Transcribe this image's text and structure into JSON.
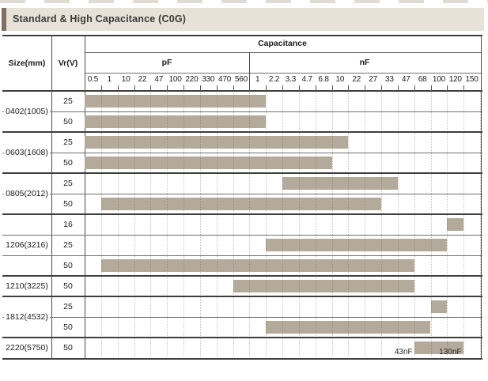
{
  "title": "Standard & High Capacitance (C0G)",
  "colors": {
    "accent": "#7e6f60",
    "title_bg": "#e6e2d8",
    "bar": "#b3aa9b"
  },
  "header": {
    "size": "Size(mm)",
    "voltage": "Vr(V)",
    "capacitance": "Capacitance",
    "pf_unit": "pF",
    "nf_unit": "nF"
  },
  "chart_data": {
    "type": "range-bar",
    "title": "Standard & High Capacitance (C0G)",
    "x_axis": {
      "pf_ticks": [
        "0.5",
        "1",
        "10",
        "22",
        "47",
        "100",
        "220",
        "330",
        "470",
        "560"
      ],
      "nf_ticks": [
        "1",
        "2.2",
        "3.3",
        "4.7",
        "6.8",
        "10",
        "22",
        "27",
        "33",
        "47",
        "68",
        "100",
        "120",
        "150"
      ]
    },
    "layout": {
      "bins_total": 24,
      "grid": "dotted-vertical",
      "bar_note": "from/to are bin boundary indices 0-24 along the 24-bin capacitance scale"
    },
    "groups": [
      {
        "size": "0402(1005)",
        "rows": [
          {
            "vr": "25",
            "from": 0,
            "to": 11,
            "range": "0.5 pF - 1 nF"
          },
          {
            "vr": "50",
            "from": 0,
            "to": 11,
            "range": "0.5 pF - 1 nF"
          }
        ]
      },
      {
        "size": "0603(1608)",
        "rows": [
          {
            "vr": "25",
            "from": 0,
            "to": 16,
            "range": "0.5 pF - 10 nF"
          },
          {
            "vr": "50",
            "from": 0,
            "to": 15,
            "range": "0.5 pF - 6.8 nF"
          }
        ]
      },
      {
        "size": "0805(2012)",
        "rows": [
          {
            "vr": "25",
            "from": 12,
            "to": 19,
            "range": "3.3 nF - 33 nF"
          },
          {
            "vr": "50",
            "from": 1,
            "to": 18,
            "range": "1 pF - 27 nF"
          }
        ]
      },
      {
        "size": "1206(3216)",
        "rows": [
          {
            "vr": "16",
            "from": 22,
            "to": 23,
            "range": "120 nF"
          },
          {
            "vr": "25",
            "from": 11,
            "to": 22,
            "range": "2.2 nF - 100 nF"
          },
          {
            "vr": "50",
            "from": 1,
            "to": 20,
            "range": "1 pF - 47 nF"
          }
        ]
      },
      {
        "size": "1210(3225)",
        "rows": [
          {
            "vr": "50",
            "from": 9,
            "to": 20,
            "range": "560 pF - 47 nF"
          }
        ]
      },
      {
        "size": "1812(4532)",
        "rows": [
          {
            "vr": "25",
            "from": 21,
            "to": 22,
            "range": "100 nF"
          },
          {
            "vr": "50",
            "from": 11,
            "to": 21,
            "range": "2.2 nF - 68 nF"
          }
        ]
      },
      {
        "size": "2220(5750)",
        "rows": [
          {
            "vr": "50",
            "from": 20,
            "to": 23,
            "range": "43 nF - 130 nF",
            "bar_labels": [
              {
                "text": "43nF",
                "anchor": "start"
              },
              {
                "text": "130nF",
                "anchor": "end"
              }
            ]
          }
        ]
      }
    ]
  }
}
